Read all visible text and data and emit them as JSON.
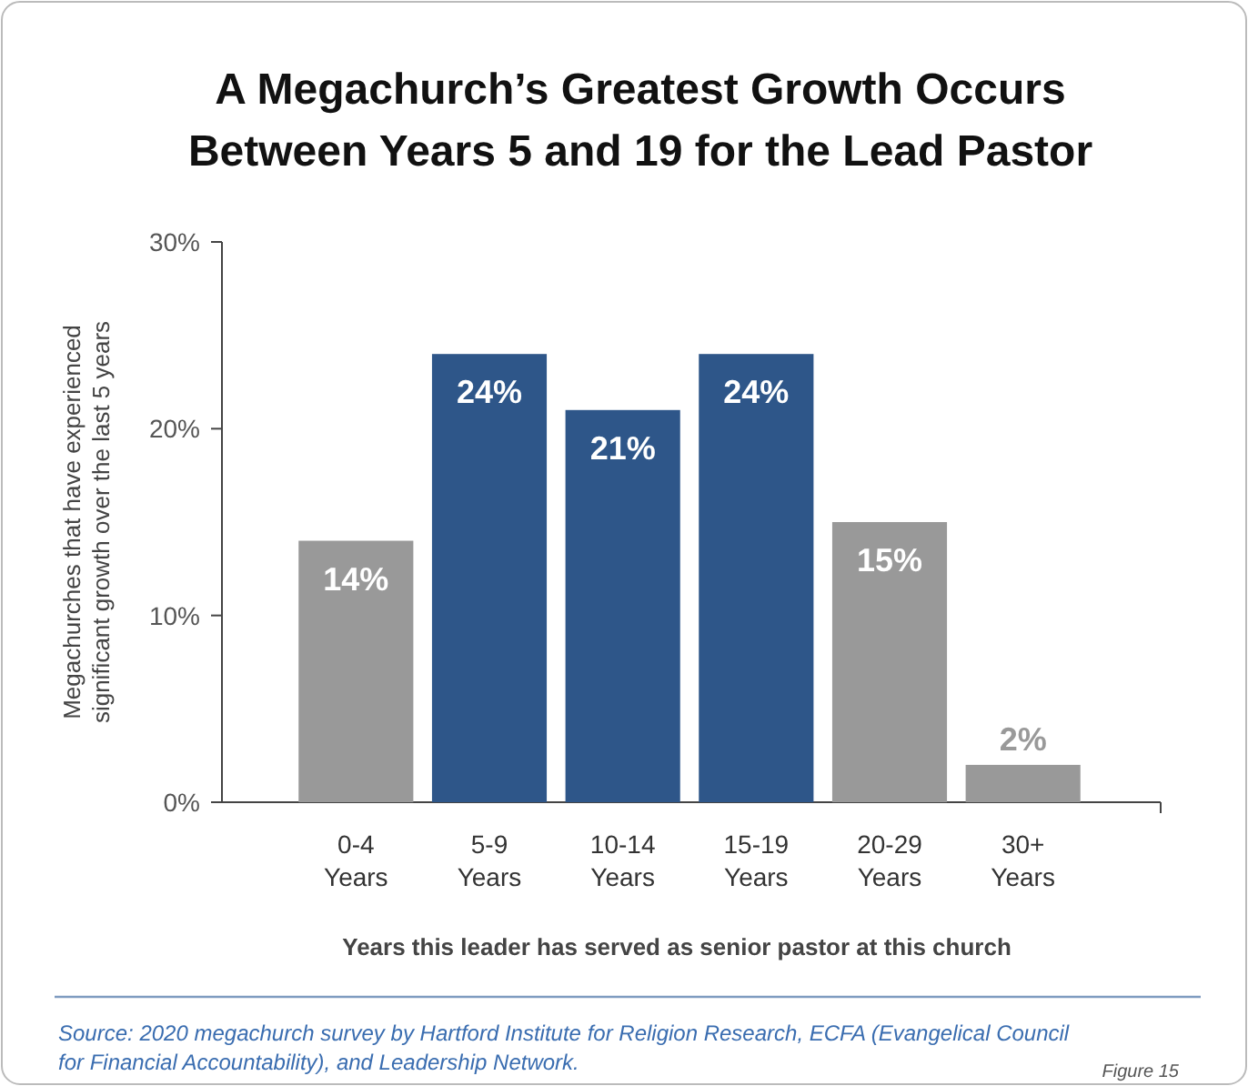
{
  "chart_data": {
    "type": "bar",
    "title": "A Megachurch’s Greatest Growth Occurs Between Years 5 and 19 for the Lead Pastor",
    "xlabel": "Years this leader has served as senior pastor at this church",
    "ylabel": "Megachurches that have experienced significant growth over the last 5 years",
    "categories": [
      "0-4 Years",
      "5-9 Years",
      "10-14 Years",
      "15-19 Years",
      "20-29 Years",
      "30+ Years"
    ],
    "values": [
      14,
      24,
      21,
      24,
      15,
      2
    ],
    "colors": [
      "#999999",
      "#2e5689",
      "#2e5689",
      "#2e5689",
      "#999999",
      "#999999"
    ],
    "ylim": [
      0,
      30
    ],
    "yticks": [
      {
        "value": 0,
        "label": "0%"
      },
      {
        "value": 10,
        "label": "10%"
      },
      {
        "value": 20,
        "label": "20%"
      },
      {
        "value": 30,
        "label": "30%"
      }
    ],
    "value_labels": [
      "14%",
      "24%",
      "21%",
      "24%",
      "15%",
      "2%"
    ],
    "annotations": [
      "Source: 2020 megachurch survey by Hartford Institute for Religion Research, ECFA (Evangelical Council for Financial Accountability), and Leadership Network.",
      "Figure 15"
    ]
  }
}
